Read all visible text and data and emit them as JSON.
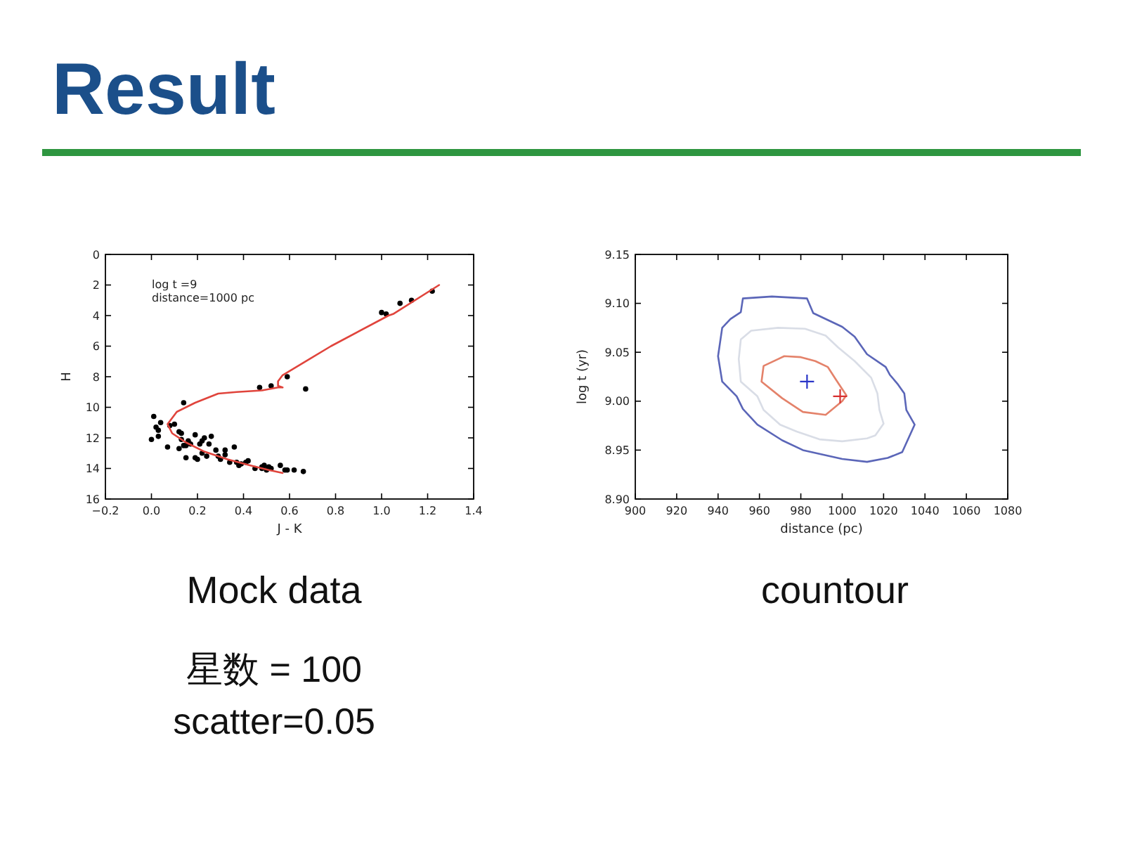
{
  "chart_data": [
    {
      "type": "scatter",
      "title": "Result",
      "subtitle": "Mock data",
      "xlabel": "J - K",
      "ylabel": "H",
      "annotations": [
        "log t =9\ndistance=1000 pc",
        "星数 = 100",
        "scatter=0.05"
      ],
      "xlim": [
        -0.2,
        1.4
      ],
      "xticks": [
        {
          "value": -0.2,
          "label": "−0.2"
        },
        {
          "value": 0,
          "label": "0.0"
        },
        {
          "value": 0.2,
          "label": "0.2"
        },
        {
          "value": 0.4,
          "label": "0.4"
        },
        {
          "value": 0.6,
          "label": "0.6"
        },
        {
          "value": 0.8,
          "label": "0.8"
        },
        {
          "value": 1,
          "label": "1.0"
        },
        {
          "value": 1.2,
          "label": "1.2"
        },
        {
          "value": 1.4,
          "label": "1.4"
        }
      ],
      "ylim": [
        16,
        0
      ],
      "yticks": [
        0,
        2,
        4,
        6,
        8,
        10,
        12,
        14,
        16
      ],
      "series": [
        {
          "marker": "circle",
          "color": "#000000",
          "x": [
            1.0,
            1.02,
            1.08,
            1.13,
            1.22,
            0.47,
            0.52,
            0.59,
            0.67,
            0.14,
            0.01,
            0.02,
            0.03,
            0.04,
            0.0,
            0.03,
            0.07,
            0.08,
            0.1,
            0.12,
            0.13,
            0.13,
            0.14,
            0.12,
            0.15,
            0.16,
            0.17,
            0.15,
            0.19,
            0.19,
            0.2,
            0.21,
            0.22,
            0.23,
            0.22,
            0.24,
            0.25,
            0.26,
            0.28,
            0.29,
            0.3,
            0.32,
            0.32,
            0.34,
            0.36,
            0.37,
            0.38,
            0.39,
            0.41,
            0.42,
            0.45,
            0.48,
            0.48,
            0.49,
            0.5,
            0.51,
            0.52,
            0.56,
            0.58,
            0.59,
            0.62,
            0.66
          ],
          "values": [
            3.8,
            3.9,
            3.2,
            3.0,
            2.4,
            8.7,
            8.6,
            8.0,
            8.8,
            9.7,
            10.6,
            11.3,
            11.5,
            11.0,
            12.1,
            11.9,
            12.6,
            11.2,
            11.1,
            11.6,
            11.7,
            12.1,
            12.5,
            12.7,
            12.5,
            12.2,
            12.4,
            13.3,
            11.8,
            13.3,
            13.4,
            12.4,
            12.2,
            12.0,
            13.0,
            13.2,
            12.4,
            11.9,
            12.8,
            13.2,
            13.4,
            12.8,
            13.1,
            13.6,
            12.6,
            13.6,
            13.8,
            13.7,
            13.6,
            13.5,
            14.0,
            13.9,
            14.0,
            13.8,
            14.1,
            13.9,
            14.0,
            13.8,
            14.1,
            14.1,
            14.1,
            14.2
          ]
        },
        {
          "type": "line",
          "line_style": "solid",
          "color": "#e0443c",
          "x": [
            1.25,
            1.05,
            1.03,
            0.78,
            0.57,
            0.55,
            0.55,
            0.57,
            0.55,
            0.48,
            0.37,
            0.29,
            0.19,
            0.11,
            0.07,
            0.09,
            0.15,
            0.23,
            0.33,
            0.43,
            0.51,
            0.57
          ],
          "values": [
            2.0,
            3.9,
            4.0,
            6.0,
            7.9,
            8.3,
            8.6,
            8.7,
            8.7,
            8.9,
            9.0,
            9.1,
            9.7,
            10.3,
            11.1,
            11.7,
            12.3,
            12.9,
            13.4,
            13.8,
            14.1,
            14.3
          ]
        }
      ]
    },
    {
      "type": "scatter",
      "subtitle": "countour",
      "xlabel": "distance (pc)",
      "ylabel": "log t (yr)",
      "marker": "cross",
      "xlim": [
        900,
        1080
      ],
      "xticks": [
        900,
        920,
        940,
        960,
        980,
        1000,
        1020,
        1040,
        1060,
        1080
      ],
      "ylim": [
        8.9,
        9.15
      ],
      "yticks": [
        {
          "value": 8.9,
          "label": "8.90"
        },
        8.95,
        {
          "value": 9,
          "label": "9.00"
        },
        9.05,
        {
          "value": 9.1,
          "label": "9.10"
        },
        9.15
      ],
      "series": [
        {
          "color": "#2a35c8",
          "x": [
            983
          ],
          "values": [
            9.02
          ]
        },
        {
          "color": "#d83030",
          "x": [
            999
          ],
          "values": [
            9.005
          ]
        }
      ]
    }
  ]
}
